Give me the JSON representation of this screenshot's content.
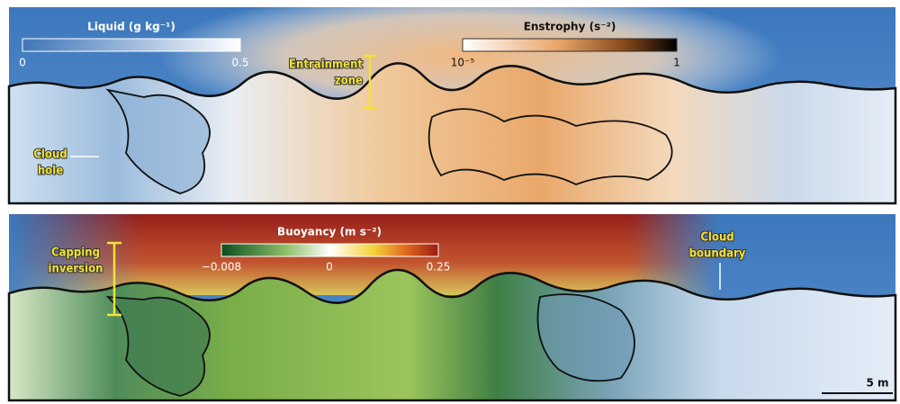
{
  "panels": [
    {
      "colorbars": [
        {
          "label": "Liquid (g kg⁻¹)",
          "ticks": [
            "0",
            "0.5"
          ]
        },
        {
          "label": "Enstrophy (s⁻²)",
          "ticks": [
            "10⁻⁵",
            "1"
          ]
        }
      ],
      "annotations": [
        {
          "lines": [
            "Entrainment",
            "zone"
          ]
        },
        {
          "lines": [
            "Cloud",
            "hole"
          ]
        }
      ]
    },
    {
      "colorbars": [
        {
          "label": "Buoyancy (m s⁻²)",
          "ticks": [
            "−0.008",
            "0",
            "0.25"
          ]
        }
      ],
      "annotations": [
        {
          "lines": [
            "Capping",
            "inversion"
          ]
        },
        {
          "lines": [
            "Cloud",
            "boundary"
          ]
        }
      ],
      "scale_bar": "5 m"
    }
  ]
}
